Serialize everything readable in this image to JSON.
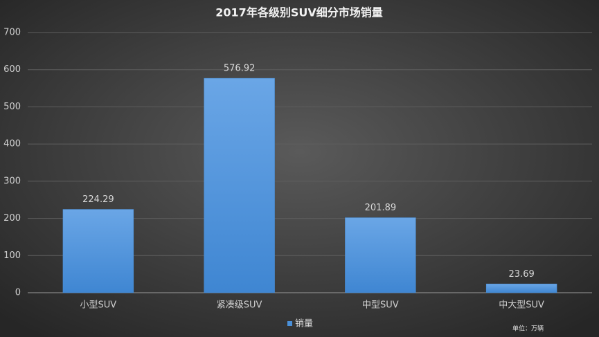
{
  "chart_data": {
    "type": "bar",
    "title": "2017年各级别SUV细分市场销量",
    "categories": [
      "小型SUV",
      "紧凑级SUV",
      "中型SUV",
      "中大型SUV"
    ],
    "series": [
      {
        "name": "销量",
        "color": "#4a90d9",
        "values": [
          224.29,
          576.92,
          201.89,
          23.69
        ]
      }
    ],
    "ylim": [
      0,
      700
    ],
    "yticks": [
      0,
      100,
      200,
      300,
      400,
      500,
      600,
      700
    ],
    "grid": true,
    "legend": "bottom",
    "note": "单位：万辆"
  }
}
